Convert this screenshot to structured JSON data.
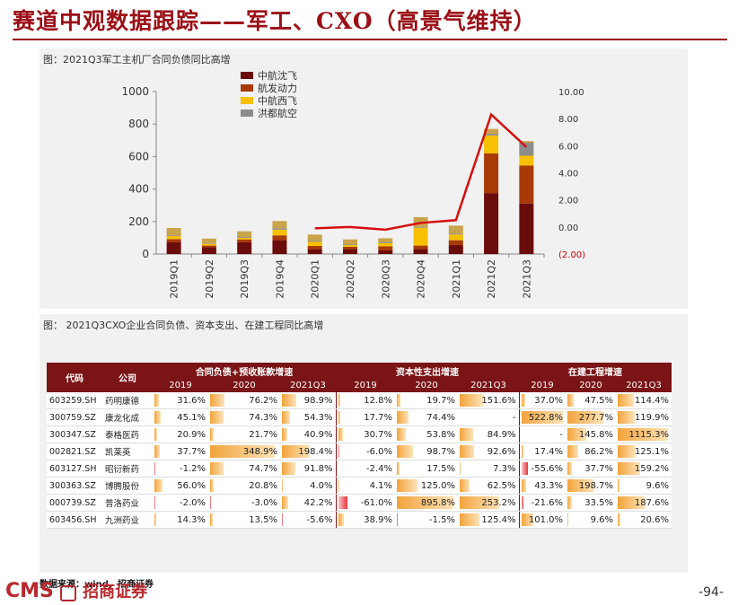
{
  "page": {
    "title": "赛道中观数据跟踪——军工、CXO（高景气维持）",
    "source": "数据来源：wind，招商证券",
    "page_number": "-94-",
    "logo_text": "CMS",
    "logo_cn": "招商证券"
  },
  "chart_caption": "图：2021Q3军工主机厂合同负债同比高增",
  "chart_data": {
    "type": "bar",
    "stacked": true,
    "categories": [
      "2019Q1",
      "2019Q2",
      "2019Q3",
      "2019Q4",
      "2020Q1",
      "2020Q2",
      "2020Q3",
      "2020Q4",
      "2021Q1",
      "2021Q2",
      "2021Q3"
    ],
    "series": [
      {
        "name": "中航沈飞",
        "color": "#6b0c0c",
        "values": [
          72,
          42,
          72,
          85,
          30,
          30,
          22,
          30,
          55,
          375,
          310
        ]
      },
      {
        "name": "航发动力",
        "color": "#a83a08",
        "values": [
          20,
          10,
          18,
          30,
          20,
          15,
          25,
          22,
          30,
          245,
          235
        ]
      },
      {
        "name": "中航西飞",
        "color": "#f7c000",
        "values": [
          18,
          10,
          10,
          35,
          25,
          10,
          20,
          110,
          35,
          110,
          60
        ]
      },
      {
        "name": "洪都航空",
        "color": "#8c8c8c",
        "values": [
          5,
          3,
          5,
          8,
          5,
          3,
          5,
          5,
          5,
          10,
          80
        ]
      },
      {
        "name": "",
        "color": "#c8a44c",
        "values": [
          45,
          30,
          35,
          45,
          40,
          32,
          25,
          60,
          50,
          30,
          10
        ]
      }
    ],
    "line": {
      "color": "#d40e0e",
      "values": [
        null,
        null,
        null,
        null,
        -0.1,
        0.0,
        -0.2,
        0.3,
        0.5,
        8.3,
        5.9
      ]
    },
    "yleft": {
      "min": 0,
      "max": 1000,
      "ticks": [
        "0",
        "200",
        "400",
        "600",
        "800",
        "1000"
      ]
    },
    "yright": {
      "min": -2,
      "max": 10,
      "ticks": [
        "(2.00)",
        "0.00",
        "2.00",
        "4.00",
        "6.00",
        "8.00",
        "10.00"
      ]
    }
  },
  "table_caption": "图：  2021Q3CXO企业合同负债、资本支出、在建工程同比高增",
  "table": {
    "col_code": "代码",
    "col_company": "公司",
    "groups": [
      "合同负债+预收账款增速",
      "资本性支出增速",
      "在建工程增速"
    ],
    "years": [
      "2019",
      "2020",
      "2021Q3"
    ],
    "rows": [
      {
        "code": "603259.SH",
        "name": "药明康德",
        "v": [
          "31.6%",
          "76.2%",
          "98.9%",
          "12.8%",
          "19.7%",
          "151.6%",
          "37.0%",
          "47.5%",
          "114.4%"
        ],
        "n": [
          31.6,
          76.2,
          98.9,
          12.8,
          19.7,
          151.6,
          37.0,
          47.5,
          114.4
        ]
      },
      {
        "code": "300759.SZ",
        "name": "康龙化成",
        "v": [
          "45.1%",
          "74.3%",
          "54.3%",
          "17.7%",
          "74.4%",
          "-",
          "522.8%",
          "277.7%",
          "119.9%"
        ],
        "n": [
          45.1,
          74.3,
          54.3,
          17.7,
          74.4,
          0,
          522.8,
          277.7,
          119.9
        ]
      },
      {
        "code": "300347.SZ",
        "name": "泰格医药",
        "v": [
          "20.9%",
          "21.7%",
          "40.9%",
          "30.7%",
          "53.8%",
          "84.9%",
          "-",
          "145.8%",
          "1115.3%"
        ],
        "n": [
          20.9,
          21.7,
          40.9,
          30.7,
          53.8,
          84.9,
          0,
          145.8,
          1115.3
        ]
      },
      {
        "code": "002821.SZ",
        "name": "凯莱英",
        "v": [
          "37.7%",
          "348.9%",
          "198.4%",
          "-6.0%",
          "98.7%",
          "92.6%",
          "17.4%",
          "86.2%",
          "125.1%"
        ],
        "n": [
          37.7,
          348.9,
          198.4,
          -6.0,
          98.7,
          92.6,
          17.4,
          86.2,
          125.1
        ]
      },
      {
        "code": "603127.SH",
        "name": "昭衍新药",
        "v": [
          "-1.2%",
          "74.7%",
          "91.8%",
          "-2.4%",
          "17.5%",
          "7.3%",
          "-55.6%",
          "37.7%",
          "159.2%"
        ],
        "n": [
          -1.2,
          74.7,
          91.8,
          -2.4,
          17.5,
          7.3,
          -55.6,
          37.7,
          159.2
        ]
      },
      {
        "code": "300363.SZ",
        "name": "博腾股份",
        "v": [
          "56.0%",
          "20.8%",
          "4.0%",
          "4.1%",
          "125.0%",
          "62.5%",
          "43.3%",
          "198.7%",
          "9.6%"
        ],
        "n": [
          56.0,
          20.8,
          4.0,
          4.1,
          125.0,
          62.5,
          43.3,
          198.7,
          9.6
        ]
      },
      {
        "code": "000739.SZ",
        "name": "普洛药业",
        "v": [
          "-2.0%",
          "-3.0%",
          "42.2%",
          "-61.0%",
          "895.8%",
          "253.2%",
          "-21.6%",
          "33.5%",
          "187.6%"
        ],
        "n": [
          -2.0,
          -3.0,
          42.2,
          -61.0,
          895.8,
          253.2,
          -21.6,
          33.5,
          187.6
        ]
      },
      {
        "code": "603456.SH",
        "name": "九洲药业",
        "v": [
          "14.3%",
          "13.5%",
          "-5.6%",
          "38.9%",
          "-1.5%",
          "125.4%",
          "101.0%",
          "9.6%",
          "20.6%"
        ],
        "n": [
          14.3,
          13.5,
          -5.6,
          38.9,
          -1.5,
          125.4,
          101.0,
          9.6,
          20.6
        ]
      }
    ]
  }
}
